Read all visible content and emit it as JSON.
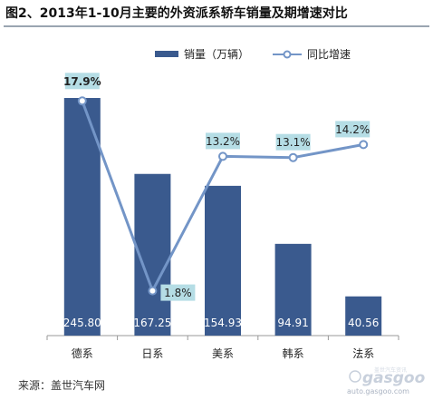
{
  "title": "图2、2013年1-10月主要的外资派系轿车销量及期增速对比",
  "source": "来源：盖世汽车网",
  "colors": {
    "bar": "#3a5a8e",
    "line": "#7395c7",
    "label_box": "#b5dde5",
    "axis": "#999999"
  },
  "watermark": {
    "logo": "gasgoo",
    "caption": "盖世汽车资讯",
    "url": "auto.gasgoo.com"
  },
  "chart_data": {
    "type": "bar",
    "categories": [
      "德系",
      "日系",
      "美系",
      "韩系",
      "法系"
    ],
    "series": [
      {
        "name": "销量（万辆）",
        "type": "bar",
        "axis": "left",
        "values": [
          245.8,
          167.25,
          154.93,
          94.91,
          40.56
        ],
        "labels": [
          "245.80",
          "167.25",
          "154.93",
          "94.91",
          "40.56"
        ]
      },
      {
        "name": "同比增速",
        "type": "line",
        "axis": "right",
        "values": [
          17.9,
          1.8,
          13.2,
          13.1,
          14.2
        ],
        "labels": [
          "17.9%",
          "1.8%",
          "13.2%",
          "13.1%",
          "14.2%"
        ]
      }
    ],
    "ylim_left": [
      0,
      300
    ],
    "ylim_right": [
      1,
      20
    ],
    "grid": false,
    "legend": "top"
  }
}
